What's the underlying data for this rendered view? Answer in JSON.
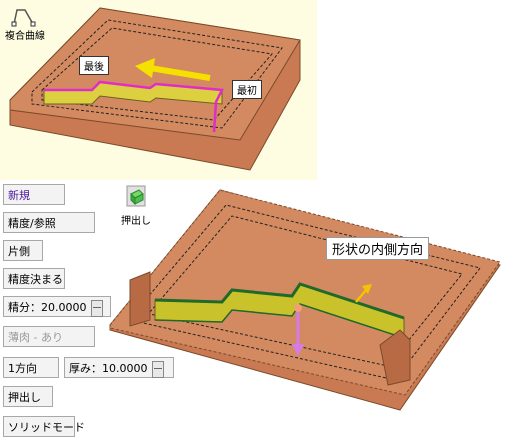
{
  "top_panel": {
    "tool_label": "複合曲線",
    "callout_end": "最後",
    "callout_start": "最初",
    "tool_icon": "curve-tool-icon",
    "arrow_color": "#f5e000",
    "curve_color": "#e02cc8"
  },
  "commands": {
    "new": "新規",
    "ref": "精度/参照",
    "one_side": "片側",
    "decide": "精度決まる",
    "accuracy_label": "精分：",
    "accuracy_value": "20.0000",
    "thin": "薄肉 - あり",
    "direction": "1方向",
    "thickness_label": "厚み：",
    "thickness_value": "10.0000",
    "extrude": "押出し",
    "solid_mode": "ソリッドモード"
  },
  "extrude_tool": {
    "label": "押出し",
    "icon": "extrude-icon"
  },
  "main_view": {
    "callout": "形状の内側方向",
    "wall_color": "#c9c22a",
    "box_color": "#c97a52"
  }
}
